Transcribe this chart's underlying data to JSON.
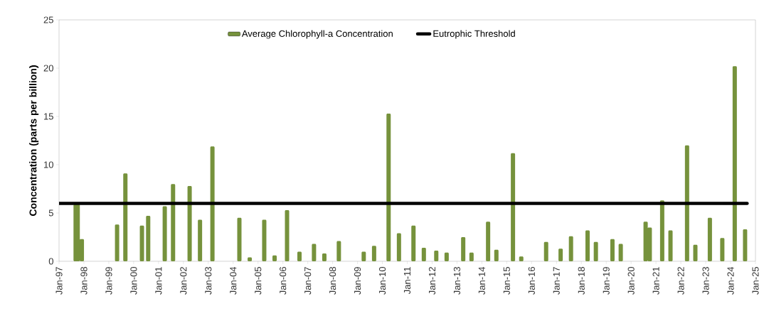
{
  "chart_data": {
    "type": "bar",
    "ylabel": "Concentration (parts per billion)",
    "xlim": [
      "1997-01",
      "2025-01"
    ],
    "ylim": [
      0,
      25
    ],
    "yticks": [
      0,
      5,
      10,
      15,
      20,
      25
    ],
    "xticks": [
      {
        "value": "1997-01",
        "label": "Jan-97"
      },
      {
        "value": "1998-01",
        "label": "Jan-98"
      },
      {
        "value": "1999-01",
        "label": "Jan-99"
      },
      {
        "value": "2000-01",
        "label": "Jan-00"
      },
      {
        "value": "2001-01",
        "label": "Jan-01"
      },
      {
        "value": "2002-01",
        "label": "Jan-02"
      },
      {
        "value": "2003-01",
        "label": "Jan-03"
      },
      {
        "value": "2004-01",
        "label": "Jan-04"
      },
      {
        "value": "2005-01",
        "label": "Jan-05"
      },
      {
        "value": "2006-01",
        "label": "Jan-06"
      },
      {
        "value": "2007-01",
        "label": "Jan-07"
      },
      {
        "value": "2008-01",
        "label": "Jan-08"
      },
      {
        "value": "2009-01",
        "label": "Jan-09"
      },
      {
        "value": "2010-01",
        "label": "Jan-10"
      },
      {
        "value": "2011-01",
        "label": "Jan-11"
      },
      {
        "value": "2012-01",
        "label": "Jan-12"
      },
      {
        "value": "2013-01",
        "label": "Jan-13"
      },
      {
        "value": "2014-01",
        "label": "Jan-14"
      },
      {
        "value": "2015-01",
        "label": "Jan-15"
      },
      {
        "value": "2016-01",
        "label": "Jan-16"
      },
      {
        "value": "2017-01",
        "label": "Jan-17"
      },
      {
        "value": "2018-01",
        "label": "Jan-18"
      },
      {
        "value": "2019-01",
        "label": "Jan-19"
      },
      {
        "value": "2020-01",
        "label": "Jan-20"
      },
      {
        "value": "2021-01",
        "label": "Jan-21"
      },
      {
        "value": "2022-01",
        "label": "Jan-22"
      },
      {
        "value": "2023-01",
        "label": "Jan-23"
      },
      {
        "value": "2024-01",
        "label": "Jan-24"
      },
      {
        "value": "2025-01",
        "label": "Jan-25"
      }
    ],
    "grid": false,
    "legend": "top",
    "series": [
      {
        "name": "Average Chlorophyll-a Concentration",
        "color": "#76923c",
        "x": [
          "1997-09",
          "1997-10",
          "1997-12",
          "1999-05",
          "1999-09",
          "2000-05",
          "2000-08",
          "2001-04",
          "2001-08",
          "2002-04",
          "2002-09",
          "2003-03",
          "2004-04",
          "2004-09",
          "2005-04",
          "2005-09",
          "2006-03",
          "2006-09",
          "2007-04",
          "2007-09",
          "2008-04",
          "2009-04",
          "2009-09",
          "2010-04",
          "2010-09",
          "2011-04",
          "2011-09",
          "2012-03",
          "2012-08",
          "2013-04",
          "2013-08",
          "2014-04",
          "2014-08",
          "2015-04",
          "2015-08",
          "2016-08",
          "2017-03",
          "2017-08",
          "2018-04",
          "2018-08",
          "2019-04",
          "2019-08",
          "2020-08",
          "2020-10",
          "2021-04",
          "2021-08",
          "2022-04",
          "2022-08",
          "2023-03",
          "2023-09",
          "2024-03",
          "2024-08"
        ],
        "values": [
          5.9,
          5.9,
          2.3,
          3.8,
          9.1,
          3.7,
          4.7,
          5.7,
          8.0,
          7.8,
          4.3,
          11.9,
          4.5,
          0.4,
          4.3,
          0.6,
          5.3,
          1.0,
          1.8,
          0.8,
          2.1,
          1.0,
          1.6,
          15.3,
          2.9,
          3.7,
          1.4,
          1.1,
          0.9,
          2.5,
          0.9,
          4.1,
          1.2,
          11.2,
          0.5,
          2.0,
          1.3,
          2.6,
          3.2,
          2.0,
          2.3,
          1.8,
          4.1,
          3.5,
          6.3,
          3.2,
          12.0,
          1.7,
          4.5,
          2.4,
          20.2,
          3.3
        ]
      },
      {
        "name": "Eutrophic Threshold",
        "type": "line",
        "color": "#000000",
        "x": [
          "1997-01",
          "2024-09"
        ],
        "values": [
          6,
          6
        ]
      }
    ]
  }
}
